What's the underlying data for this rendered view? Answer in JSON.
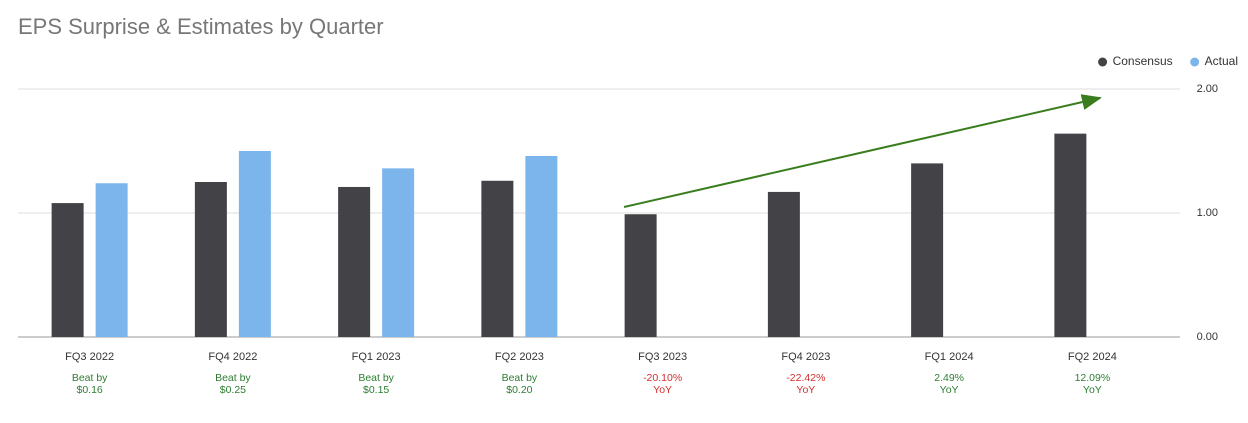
{
  "chart_data": {
    "type": "bar",
    "title": "EPS Surprise & Estimates by Quarter",
    "categories": [
      "FQ3 2022",
      "FQ4 2022",
      "FQ1 2023",
      "FQ2 2023",
      "FQ3 2023",
      "FQ4 2023",
      "FQ1 2024",
      "FQ2 2024"
    ],
    "series": [
      {
        "name": "Consensus",
        "color": "#434347",
        "values": [
          1.08,
          1.25,
          1.21,
          1.26,
          0.99,
          1.17,
          1.4,
          1.64
        ]
      },
      {
        "name": "Actual",
        "color": "#7cb5ec",
        "values": [
          1.24,
          1.5,
          1.36,
          1.46,
          null,
          null,
          null,
          null
        ]
      }
    ],
    "annotations": [
      {
        "lines": [
          "Beat by",
          "$0.16"
        ],
        "color": "#2e7d32"
      },
      {
        "lines": [
          "Beat by",
          "$0.25"
        ],
        "color": "#2e7d32"
      },
      {
        "lines": [
          "Beat by",
          "$0.15"
        ],
        "color": "#2e7d32"
      },
      {
        "lines": [
          "Beat by",
          "$0.20"
        ],
        "color": "#2e7d32"
      },
      {
        "lines": [
          "-20.10%",
          "YoY"
        ],
        "color": "#d32f2f"
      },
      {
        "lines": [
          "-22.42%",
          "YoY"
        ],
        "color": "#d32f2f"
      },
      {
        "lines": [
          "2.49%",
          "YoY"
        ],
        "color": "#2e7d32"
      },
      {
        "lines": [
          "12.09%",
          "YoY"
        ],
        "color": "#2e7d32"
      }
    ],
    "ylim": [
      0,
      2
    ],
    "yticks": [
      {
        "value": 0,
        "label": "0.00"
      },
      {
        "value": 1,
        "label": "1.00"
      },
      {
        "value": 2,
        "label": "2.00"
      }
    ],
    "grid": true,
    "legend": "top-right"
  }
}
